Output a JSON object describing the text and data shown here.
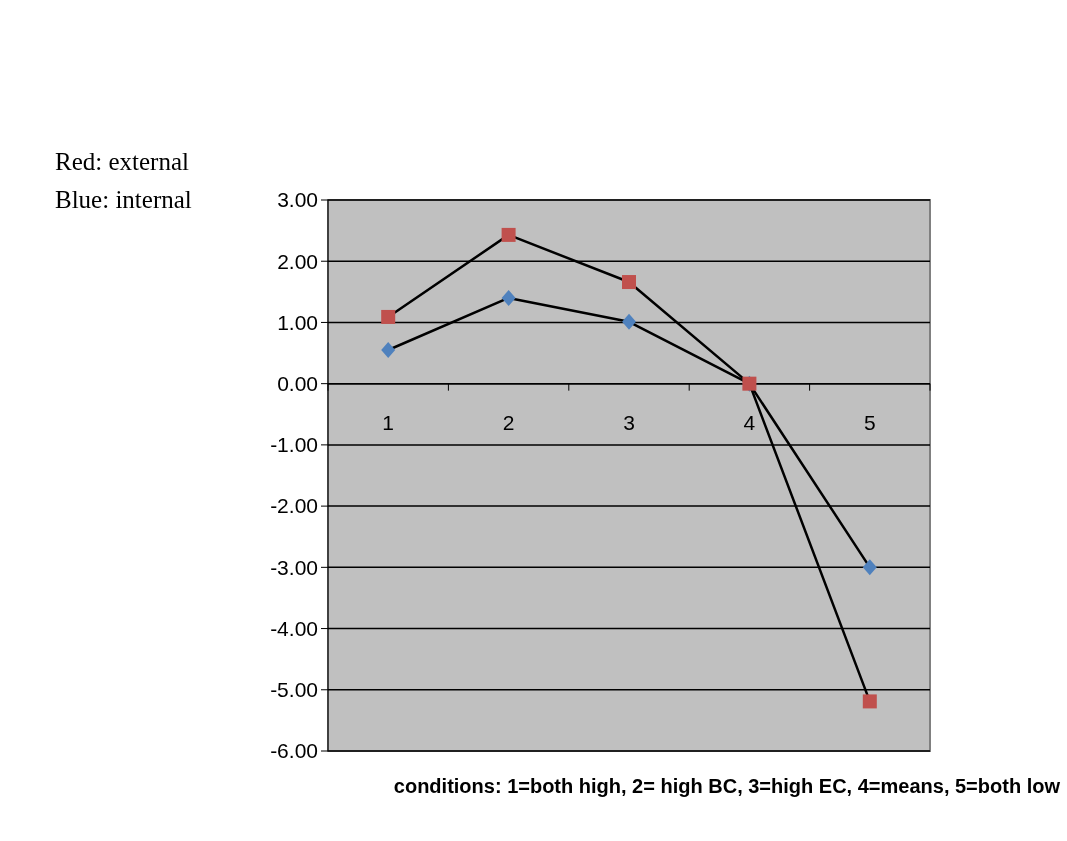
{
  "chart_data": {
    "type": "line",
    "xlabel": "conditions: 1=both high, 2= high BC, 3=high EC, 4=means, 5=both low",
    "annotations": [
      "Red: external",
      "Blue: internal"
    ],
    "categories": [
      "1",
      "2",
      "3",
      "4",
      "5"
    ],
    "series": [
      {
        "color": "#c0504d",
        "marker": "square",
        "values": [
          1.09,
          2.43,
          1.66,
          0,
          -5.19
        ]
      },
      {
        "color": "#4f81bd",
        "marker": "diamond",
        "values": [
          0.55,
          1.4,
          1.01,
          0,
          -3.0
        ]
      }
    ],
    "ylim": [
      -6,
      3
    ],
    "yticks": [
      {
        "value": 3,
        "label": "3.00"
      },
      {
        "value": 2,
        "label": "2.00"
      },
      {
        "value": 1,
        "label": "1.00"
      },
      {
        "value": 0,
        "label": "0.00"
      },
      {
        "value": -1,
        "label": "-1.00"
      },
      {
        "value": -2,
        "label": "-2.00"
      },
      {
        "value": -3,
        "label": "-3.00"
      },
      {
        "value": -4,
        "label": "-4.00"
      },
      {
        "value": -5,
        "label": "-5.00"
      },
      {
        "value": -6,
        "label": "-6.00"
      }
    ],
    "grid": "y"
  }
}
